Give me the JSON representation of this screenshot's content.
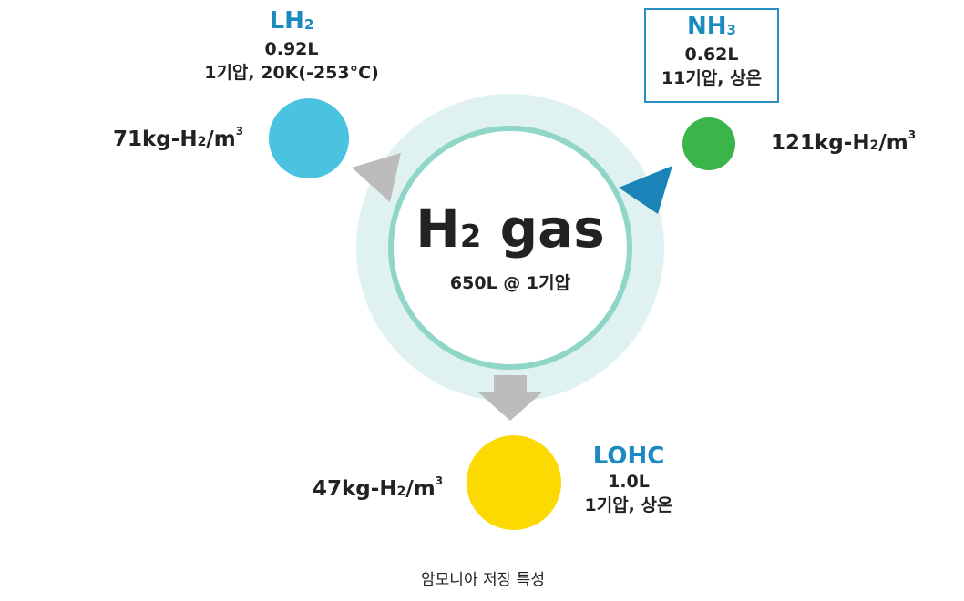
{
  "center": {
    "title_main": "H",
    "title_sub": "2",
    "title_rest": " gas",
    "subtitle": "650L @ 1기압"
  },
  "lh2": {
    "name_main": "LH",
    "name_sub": "2",
    "volume": "0.92L",
    "condition": "1기압, 20K(-253°C)",
    "density_main": "71kg-H",
    "density_sub": "2",
    "density_unit": "/m",
    "density_exp": "3",
    "color": "#4ac3e0"
  },
  "nh3": {
    "name_main": "NH",
    "name_sub": "3",
    "volume": "0.62L",
    "condition": "11기압, 상온",
    "density_main": "121kg-H",
    "density_sub": "2",
    "density_unit": "/m",
    "density_exp": "3",
    "color": "#3bb54a"
  },
  "lohc": {
    "name": "LOHC",
    "volume": "1.0L",
    "condition": "1기압, 상온",
    "density_main": "47kg-H",
    "density_sub": "2",
    "density_unit": "/m",
    "density_exp": "3",
    "color": "#fcd900"
  },
  "caption": "암모니아 저장 특성",
  "colors": {
    "ring_outer": "#dff2f1",
    "ring_line": "#8fd6c6",
    "arrow_gray": "#bcbcbc",
    "arrow_blue": "#1a84b8",
    "label_blue": "#1a8ac0"
  }
}
